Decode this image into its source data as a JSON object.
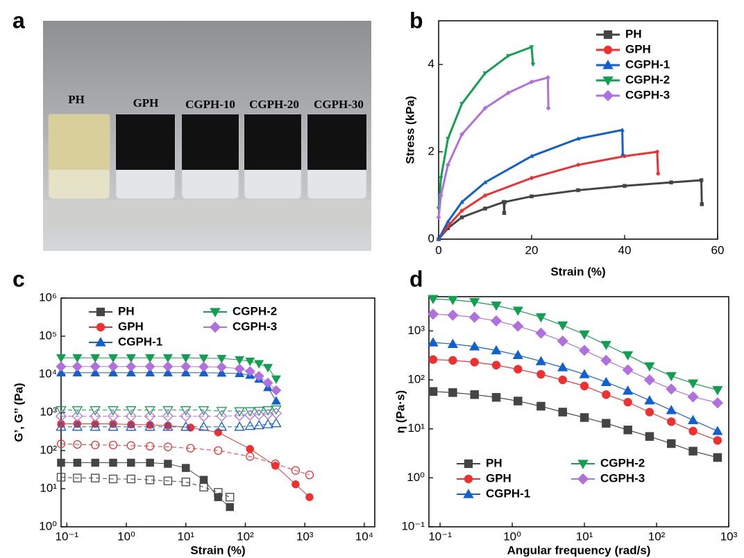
{
  "photo": {
    "panel": "a",
    "labels": [
      "PH",
      "GPH",
      "CGPH-10",
      "CGPH-20",
      "CGPH-30"
    ]
  },
  "chart_data": [
    {
      "type": "line",
      "panel": "b",
      "x_label": "Strain (%)",
      "y_label": "Stress (kPa)",
      "xlim": [
        0,
        60
      ],
      "xticks": [
        0,
        20,
        40,
        60
      ],
      "ylim": [
        0,
        5
      ],
      "yticks": [
        0,
        2,
        4
      ],
      "legend": "upper right",
      "legend_columns": 1,
      "grid": false,
      "series": [
        {
          "name": "PH",
          "color": "#444444",
          "marker": "square",
          "x": [
            0,
            2,
            5,
            10,
            14,
            14.1,
            14.2,
            20,
            30,
            40,
            50,
            56.5,
            56.6
          ],
          "values": [
            0,
            0.25,
            0.5,
            0.7,
            0.85,
            0.6,
            0.85,
            0.98,
            1.12,
            1.22,
            1.3,
            1.35,
            0.8
          ]
        },
        {
          "name": "GPH",
          "color": "#f03030",
          "marker": "circle",
          "x": [
            0,
            2,
            5,
            10,
            20,
            30,
            40,
            47,
            47.2
          ],
          "values": [
            0,
            0.3,
            0.65,
            1.0,
            1.4,
            1.7,
            1.9,
            2.0,
            1.5
          ]
        },
        {
          "name": "CGPH-1",
          "color": "#1060d0",
          "marker": "triangle-up",
          "x": [
            0,
            2,
            5,
            10,
            20,
            30,
            39.5,
            39.6
          ],
          "values": [
            0,
            0.4,
            0.85,
            1.3,
            1.9,
            2.3,
            2.5,
            1.95
          ]
        },
        {
          "name": "CGPH-2",
          "color": "#10a050",
          "marker": "triangle-down",
          "x": [
            0,
            0.5,
            2,
            5,
            10,
            15,
            20,
            20.3
          ],
          "values": [
            0.7,
            1.4,
            2.3,
            3.1,
            3.8,
            4.2,
            4.4,
            4.0
          ]
        },
        {
          "name": "CGPH-3",
          "color": "#b070e0",
          "marker": "diamond",
          "x": [
            0,
            0.5,
            2,
            5,
            10,
            15,
            20,
            23.5,
            23.6
          ],
          "values": [
            0.5,
            1.0,
            1.7,
            2.4,
            3.0,
            3.35,
            3.6,
            3.7,
            3.0
          ]
        }
      ]
    },
    {
      "type": "line",
      "panel": "c",
      "x_label": "Strain (%)",
      "y_label": "G’, G’’ (Pa)",
      "xscale": "log",
      "yscale": "log",
      "xlim": [
        0.08,
        15000
      ],
      "xticks": [
        {
          "value": 0.1,
          "label": "10⁻¹"
        },
        {
          "value": 1,
          "label": "10⁰"
        },
        {
          "value": 10,
          "label": "10¹"
        },
        {
          "value": 100,
          "label": "10²"
        },
        {
          "value": 1000,
          "label": "10³"
        },
        {
          "value": 10000,
          "label": "10⁴"
        }
      ],
      "ylim": [
        1,
        1000000
      ],
      "yticks": [
        {
          "value": 1,
          "label": "10⁰"
        },
        {
          "value": 10,
          "label": "10¹"
        },
        {
          "value": 100,
          "label": "10²"
        },
        {
          "value": 1000,
          "label": "10³"
        },
        {
          "value": 10000,
          "label": "10⁴"
        },
        {
          "value": 100000,
          "label": "10⁵"
        },
        {
          "value": 1000000,
          "label": "10⁶"
        }
      ],
      "legend": "upper left",
      "legend_columns": 2,
      "grid": false,
      "series": [
        {
          "name": "PH",
          "color": "#444444",
          "marker": "square",
          "x": [
            0.08,
            0.15,
            0.3,
            0.6,
            1.2,
            2.5,
            5,
            10,
            20,
            35,
            55
          ],
          "storage": [
            48,
            48,
            48,
            48,
            48,
            48,
            45,
            35,
            17,
            6,
            3.3
          ],
          "loss": [
            20,
            19,
            19,
            18,
            18,
            17,
            16,
            15,
            11,
            8,
            6
          ]
        },
        {
          "name": "GPH",
          "color": "#f03030",
          "marker": "circle",
          "x": [
            0.08,
            0.15,
            0.3,
            0.6,
            1.2,
            2.5,
            5,
            12,
            35,
            120,
            320,
            700,
            1200
          ],
          "storage": [
            500,
            500,
            500,
            500,
            480,
            470,
            450,
            400,
            300,
            110,
            40,
            13,
            6
          ],
          "loss": [
            150,
            145,
            140,
            140,
            135,
            130,
            125,
            115,
            100,
            70,
            45,
            30,
            23
          ]
        },
        {
          "name": "CGPH-1",
          "color": "#1060d0",
          "marker": "triangle-up",
          "x": [
            0.08,
            0.15,
            0.3,
            0.6,
            1.2,
            2.5,
            5,
            10,
            20,
            40,
            80,
            120,
            170,
            240,
            330
          ],
          "storage": [
            11000,
            11000,
            11000,
            11000,
            11000,
            11000,
            11000,
            11000,
            11000,
            10800,
            10500,
            9500,
            7500,
            4500,
            2000
          ],
          "loss": [
            420,
            420,
            420,
            420,
            420,
            420,
            420,
            420,
            420,
            420,
            420,
            440,
            460,
            490,
            520
          ]
        },
        {
          "name": "CGPH-2",
          "color": "#10a050",
          "marker": "triangle-down",
          "x": [
            0.08,
            0.15,
            0.3,
            0.6,
            1.2,
            2.5,
            5,
            10,
            20,
            40,
            80,
            120,
            170,
            240,
            330
          ],
          "storage": [
            27000,
            27000,
            27000,
            27000,
            27000,
            27000,
            27000,
            27000,
            26500,
            26000,
            24000,
            22000,
            19000,
            15000,
            7500
          ],
          "loss": [
            1150,
            1150,
            1150,
            1150,
            1150,
            1150,
            1150,
            1150,
            1150,
            1100,
            1080,
            1080,
            1100,
            1150,
            1200
          ]
        },
        {
          "name": "CGPH-3",
          "color": "#b070e0",
          "marker": "diamond",
          "x": [
            0.08,
            0.15,
            0.3,
            0.6,
            1.2,
            2.5,
            5,
            10,
            20,
            40,
            80,
            120,
            170,
            240,
            330
          ],
          "storage": [
            16000,
            16000,
            16000,
            16000,
            16000,
            16000,
            16000,
            16000,
            15800,
            15500,
            14000,
            12000,
            9000,
            6000,
            3800
          ],
          "loss": [
            800,
            800,
            800,
            800,
            800,
            800,
            800,
            800,
            800,
            800,
            820,
            850,
            880,
            900,
            950
          ]
        }
      ]
    },
    {
      "type": "line",
      "panel": "d",
      "x_label": "Angular frequency (rad/s)",
      "y_label": "η (Pa·s)",
      "xscale": "log",
      "yscale": "log",
      "xlim": [
        0.07,
        1000
      ],
      "xticks": [
        {
          "value": 0.1,
          "label": "10⁻¹"
        },
        {
          "value": 1,
          "label": "10⁰"
        },
        {
          "value": 10,
          "label": "10¹"
        },
        {
          "value": 100,
          "label": "10²"
        },
        {
          "value": 1000,
          "label": "10³"
        }
      ],
      "ylim": [
        0.1,
        5000
      ],
      "yticks": [
        {
          "value": 0.1,
          "label": "10⁻¹"
        },
        {
          "value": 1,
          "label": "10⁰"
        },
        {
          "value": 10,
          "label": "10¹"
        },
        {
          "value": 100,
          "label": "10²"
        },
        {
          "value": 1000,
          "label": "10³"
        }
      ],
      "legend": "lower left",
      "legend_columns": 2,
      "grid": false,
      "x": [
        0.08,
        0.15,
        0.3,
        0.6,
        1.2,
        2.5,
        5,
        10,
        20,
        40,
        80,
        160,
        320,
        700
      ],
      "series": [
        {
          "name": "PH",
          "color": "#444444",
          "marker": "square",
          "values": [
            58,
            55,
            50,
            44,
            37,
            29,
            22,
            17,
            13,
            9.5,
            7,
            5,
            3.5,
            2.6
          ]
        },
        {
          "name": "GPH",
          "color": "#f03030",
          "marker": "circle",
          "values": [
            260,
            250,
            230,
            200,
            165,
            130,
            100,
            75,
            50,
            35,
            22,
            14,
            9,
            5.8
          ]
        },
        {
          "name": "CGPH-1",
          "color": "#1060d0",
          "marker": "triangle-up",
          "values": [
            580,
            540,
            480,
            400,
            320,
            240,
            180,
            130,
            90,
            60,
            38,
            24,
            15,
            9
          ]
        },
        {
          "name": "CGPH-2",
          "color": "#10a050",
          "marker": "triangle-down",
          "values": [
            4500,
            4300,
            3900,
            3300,
            2600,
            1900,
            1300,
            850,
            520,
            320,
            190,
            120,
            85,
            62
          ]
        },
        {
          "name": "CGPH-3",
          "color": "#b070e0",
          "marker": "diamond",
          "values": [
            2200,
            2100,
            1900,
            1600,
            1250,
            900,
            620,
            400,
            250,
            160,
            100,
            65,
            45,
            34
          ]
        }
      ]
    }
  ]
}
